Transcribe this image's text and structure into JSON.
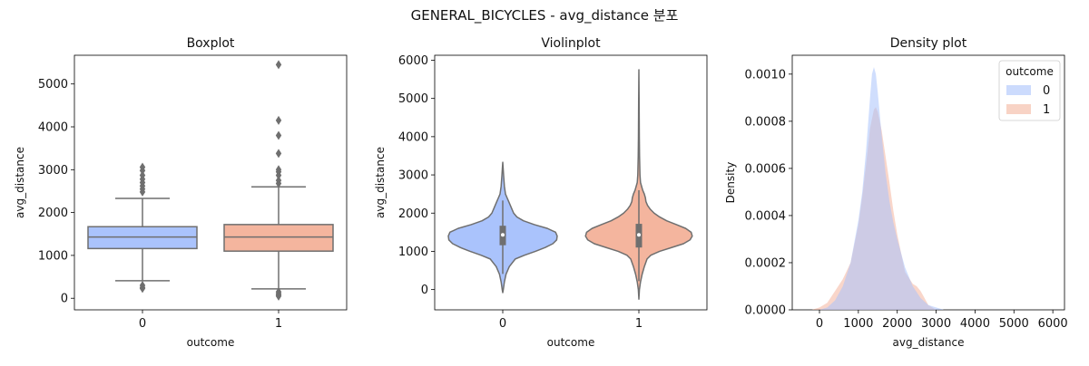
{
  "suptitle": "GENERAL_BICYCLES - avg_distance 분포",
  "colors": {
    "outcome_0": "#aac3fc",
    "outcome_1": "#f4b59e",
    "outline": "#6f6f6f",
    "axis": "#000000"
  },
  "chart_data": [
    {
      "type": "box",
      "title": "Boxplot",
      "xlabel": "outcome",
      "ylabel": "avg_distance",
      "categories": [
        "0",
        "1"
      ],
      "ylim": [
        -270,
        5670
      ],
      "yticks": [
        0,
        1000,
        2000,
        3000,
        4000,
        5000
      ],
      "series": [
        {
          "category": "0",
          "q1": 1160,
          "median": 1430,
          "q3": 1670,
          "whisker_low": 410,
          "whisker_high": 2330,
          "outliers": [
            300,
            250,
            230,
            2480,
            2550,
            2620,
            2700,
            2780,
            2870,
            2980,
            3060
          ]
        },
        {
          "category": "1",
          "q1": 1100,
          "median": 1430,
          "q3": 1720,
          "whisker_low": 220,
          "whisker_high": 2600,
          "outliers": [
            150,
            110,
            80,
            50,
            2680,
            2750,
            2870,
            2950,
            3000,
            3380,
            3800,
            4150,
            5450
          ]
        }
      ]
    },
    {
      "type": "violin",
      "title": "Violinplot",
      "xlabel": "outcome",
      "ylabel": "avg_distance",
      "categories": [
        "0",
        "1"
      ],
      "ylim": [
        -530,
        6130
      ],
      "yticks": [
        0,
        1000,
        2000,
        3000,
        4000,
        5000,
        6000
      ],
      "series": [
        {
          "category": "0",
          "median": 1430,
          "q1": 1160,
          "q3": 1670,
          "whisker_low": 410,
          "whisker_high": 2330,
          "profile": [
            [
              -80,
              0
            ],
            [
              0,
              0.01
            ],
            [
              200,
              0.03
            ],
            [
              400,
              0.06
            ],
            [
              600,
              0.12
            ],
            [
              800,
              0.23
            ],
            [
              900,
              0.4
            ],
            [
              1000,
              0.6
            ],
            [
              1100,
              0.78
            ],
            [
              1200,
              0.92
            ],
            [
              1300,
              0.99
            ],
            [
              1400,
              1.0
            ],
            [
              1500,
              0.97
            ],
            [
              1600,
              0.82
            ],
            [
              1700,
              0.58
            ],
            [
              1800,
              0.38
            ],
            [
              1900,
              0.26
            ],
            [
              2000,
              0.2
            ],
            [
              2100,
              0.17
            ],
            [
              2200,
              0.14
            ],
            [
              2300,
              0.11
            ],
            [
              2400,
              0.08
            ],
            [
              2500,
              0.05
            ],
            [
              2700,
              0.03
            ],
            [
              3000,
              0.015
            ],
            [
              3330,
              0
            ]
          ]
        },
        {
          "category": "1",
          "median": 1430,
          "q1": 1100,
          "q3": 1720,
          "whisker_low": 220,
          "whisker_high": 2600,
          "profile": [
            [
              -250,
              0
            ],
            [
              0,
              0.01
            ],
            [
              200,
              0.03
            ],
            [
              400,
              0.06
            ],
            [
              600,
              0.1
            ],
            [
              800,
              0.15
            ],
            [
              900,
              0.22
            ],
            [
              1000,
              0.38
            ],
            [
              1100,
              0.6
            ],
            [
              1200,
              0.82
            ],
            [
              1300,
              0.94
            ],
            [
              1400,
              0.98
            ],
            [
              1500,
              0.96
            ],
            [
              1600,
              0.86
            ],
            [
              1700,
              0.69
            ],
            [
              1800,
              0.51
            ],
            [
              1900,
              0.38
            ],
            [
              2000,
              0.28
            ],
            [
              2100,
              0.21
            ],
            [
              2200,
              0.16
            ],
            [
              2300,
              0.13
            ],
            [
              2400,
              0.12
            ],
            [
              2500,
              0.1
            ],
            [
              2600,
              0.07
            ],
            [
              2800,
              0.03
            ],
            [
              3000,
              0.02
            ],
            [
              3500,
              0.012
            ],
            [
              4000,
              0.008
            ],
            [
              4500,
              0.006
            ],
            [
              5000,
              0.004
            ],
            [
              5400,
              0.002
            ],
            [
              5750,
              0
            ]
          ]
        }
      ]
    },
    {
      "type": "area",
      "title": "Density plot",
      "xlabel": "avg_distance",
      "ylabel": "Density",
      "xlim": [
        -700,
        6300
      ],
      "ylim": [
        0,
        0.00108
      ],
      "xticks": [
        0,
        1000,
        2000,
        3000,
        4000,
        5000,
        6000
      ],
      "yticks": [
        "0.0000",
        "0.0002",
        "0.0004",
        "0.0006",
        "0.0008",
        "0.0010"
      ],
      "ytick_values": [
        0,
        0.0002,
        0.0004,
        0.0006,
        0.0008,
        0.001
      ],
      "legend": {
        "title": "outcome",
        "placement": "top-right",
        "entries": [
          "0",
          "1"
        ]
      },
      "series": [
        {
          "name": "0",
          "x": [
            0,
            200,
            400,
            600,
            800,
            1000,
            1100,
            1200,
            1300,
            1350,
            1400,
            1450,
            1500,
            1600,
            1700,
            1800,
            1900,
            2000,
            2200,
            2400,
            2600,
            2800,
            3000,
            3200
          ],
          "y": [
            0,
            1e-05,
            4e-05,
            0.0001,
            0.0002,
            0.00038,
            0.0005,
            0.00068,
            0.0009,
            0.001,
            0.00103,
            0.001,
            0.00092,
            0.00074,
            0.00058,
            0.00046,
            0.00037,
            0.0003,
            0.00018,
            0.0001,
            5e-05,
            2e-05,
            1e-05,
            0
          ]
        },
        {
          "name": "1",
          "x": [
            -200,
            0,
            200,
            400,
            600,
            800,
            1000,
            1100,
            1200,
            1300,
            1400,
            1450,
            1500,
            1600,
            1700,
            1800,
            1900,
            2000,
            2200,
            2400,
            2500,
            2600,
            2800,
            3000
          ],
          "y": [
            0,
            1e-05,
            3e-05,
            8e-05,
            0.00013,
            0.0002,
            0.00036,
            0.00048,
            0.00062,
            0.00077,
            0.00085,
            0.00086,
            0.00084,
            0.00076,
            0.00065,
            0.00054,
            0.00042,
            0.00032,
            0.00016,
            0.00011,
            0.0001,
            8e-05,
            2e-05,
            0
          ]
        }
      ]
    }
  ]
}
